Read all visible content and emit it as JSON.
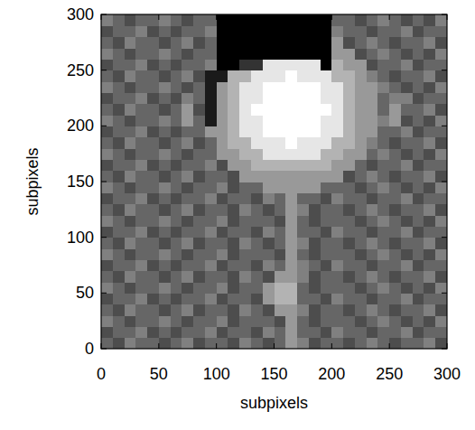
{
  "chart_data": {
    "type": "heatmap",
    "x_label": "subpixels",
    "y_label": "subpixels",
    "xlim": [
      0,
      300
    ],
    "ylim": [
      0,
      300
    ],
    "xticks": [
      0,
      50,
      100,
      150,
      200,
      250,
      300
    ],
    "yticks": [
      0,
      50,
      100,
      150,
      200,
      250,
      300
    ],
    "zlim": [
      0,
      10
    ],
    "cells": [
      [
        4,
        3,
        5,
        4,
        4,
        3,
        4,
        5,
        3,
        4,
        4,
        3,
        5,
        4,
        3,
        4,
        6,
        5,
        3,
        4,
        4,
        3,
        4,
        5,
        4,
        3,
        4,
        4,
        5,
        3
      ],
      [
        3,
        4,
        4,
        5,
        3,
        4,
        3,
        4,
        4,
        5,
        3,
        4,
        4,
        3,
        5,
        4,
        6,
        4,
        4,
        3,
        5,
        4,
        4,
        3,
        4,
        4,
        5,
        3,
        4,
        4
      ],
      [
        5,
        4,
        3,
        4,
        4,
        5,
        4,
        3,
        4,
        4,
        5,
        3,
        4,
        4,
        4,
        3,
        6,
        4,
        3,
        4,
        4,
        4,
        3,
        4,
        5,
        4,
        3,
        4,
        3,
        5
      ],
      [
        4,
        3,
        5,
        4,
        4,
        3,
        4,
        5,
        3,
        4,
        4,
        3,
        5,
        4,
        3,
        6,
        6,
        5,
        3,
        4,
        4,
        3,
        4,
        5,
        4,
        3,
        4,
        4,
        5,
        3
      ],
      [
        3,
        4,
        4,
        5,
        3,
        4,
        3,
        4,
        4,
        5,
        3,
        4,
        4,
        3,
        6,
        7,
        7,
        4,
        4,
        3,
        5,
        4,
        4,
        3,
        4,
        4,
        5,
        3,
        4,
        4
      ],
      [
        5,
        4,
        3,
        4,
        4,
        5,
        4,
        3,
        4,
        4,
        5,
        3,
        4,
        4,
        6,
        7,
        7,
        4,
        3,
        4,
        4,
        4,
        3,
        4,
        5,
        4,
        3,
        4,
        3,
        5
      ],
      [
        4,
        3,
        5,
        4,
        4,
        3,
        4,
        5,
        3,
        4,
        4,
        3,
        5,
        4,
        3,
        6,
        6,
        5,
        3,
        4,
        4,
        3,
        4,
        5,
        4,
        3,
        4,
        4,
        5,
        3
      ],
      [
        3,
        4,
        4,
        5,
        3,
        4,
        3,
        4,
        4,
        5,
        3,
        4,
        4,
        3,
        5,
        4,
        6,
        5,
        4,
        3,
        5,
        4,
        4,
        3,
        4,
        4,
        5,
        3,
        4,
        4
      ],
      [
        5,
        4,
        3,
        4,
        4,
        5,
        4,
        3,
        4,
        4,
        5,
        3,
        4,
        4,
        4,
        3,
        6,
        4,
        3,
        4,
        4,
        4,
        3,
        4,
        5,
        4,
        3,
        4,
        3,
        5
      ],
      [
        4,
        3,
        5,
        4,
        4,
        3,
        4,
        5,
        3,
        4,
        4,
        3,
        5,
        4,
        3,
        4,
        6,
        5,
        3,
        4,
        4,
        3,
        4,
        5,
        4,
        3,
        4,
        4,
        5,
        3
      ],
      [
        3,
        4,
        4,
        5,
        3,
        4,
        3,
        4,
        4,
        5,
        3,
        4,
        4,
        3,
        5,
        4,
        6,
        4,
        4,
        3,
        5,
        4,
        4,
        3,
        4,
        4,
        5,
        3,
        4,
        4
      ],
      [
        5,
        4,
        3,
        4,
        4,
        5,
        4,
        3,
        4,
        4,
        5,
        3,
        4,
        4,
        4,
        3,
        6,
        4,
        3,
        4,
        4,
        4,
        3,
        4,
        5,
        4,
        3,
        4,
        3,
        5
      ],
      [
        4,
        3,
        5,
        4,
        4,
        3,
        4,
        5,
        3,
        4,
        4,
        3,
        5,
        4,
        3,
        4,
        6,
        5,
        3,
        4,
        4,
        3,
        4,
        5,
        4,
        3,
        4,
        4,
        5,
        3
      ],
      [
        3,
        4,
        4,
        5,
        3,
        4,
        3,
        4,
        4,
        5,
        3,
        4,
        4,
        3,
        5,
        4,
        6,
        4,
        4,
        3,
        5,
        4,
        4,
        3,
        4,
        4,
        5,
        3,
        4,
        4
      ],
      [
        5,
        4,
        3,
        4,
        4,
        5,
        4,
        3,
        4,
        4,
        5,
        3,
        4,
        4,
        6,
        6,
        6,
        6,
        6,
        4,
        4,
        4,
        3,
        4,
        5,
        4,
        3,
        4,
        3,
        5
      ],
      [
        4,
        3,
        5,
        4,
        4,
        3,
        4,
        5,
        3,
        4,
        4,
        3,
        6,
        6,
        6,
        6,
        6,
        6,
        6,
        6,
        6,
        3,
        4,
        5,
        4,
        3,
        4,
        4,
        5,
        3
      ],
      [
        3,
        4,
        4,
        5,
        3,
        4,
        3,
        4,
        4,
        5,
        3,
        6,
        6,
        7,
        7,
        7,
        7,
        7,
        7,
        7,
        6,
        6,
        4,
        3,
        4,
        4,
        5,
        3,
        4,
        4
      ],
      [
        5,
        4,
        3,
        4,
        4,
        5,
        4,
        3,
        4,
        4,
        6,
        6,
        7,
        7,
        9,
        9,
        9,
        9,
        9,
        7,
        7,
        6,
        6,
        4,
        5,
        4,
        3,
        4,
        3,
        5
      ],
      [
        4,
        3,
        5,
        4,
        4,
        3,
        4,
        5,
        3,
        4,
        6,
        7,
        7,
        9,
        9,
        9,
        10,
        9,
        9,
        9,
        7,
        7,
        6,
        5,
        4,
        3,
        4,
        4,
        5,
        3
      ],
      [
        3,
        4,
        4,
        5,
        3,
        4,
        3,
        4,
        4,
        6,
        6,
        7,
        9,
        9,
        10,
        10,
        10,
        10,
        10,
        9,
        9,
        7,
        6,
        6,
        4,
        4,
        5,
        3,
        4,
        4
      ],
      [
        5,
        4,
        3,
        4,
        4,
        5,
        4,
        6,
        4,
        1,
        6,
        7,
        9,
        9,
        10,
        10,
        10,
        10,
        10,
        9,
        9,
        7,
        6,
        6,
        5,
        6,
        3,
        4,
        3,
        5
      ],
      [
        4,
        3,
        5,
        4,
        4,
        3,
        4,
        6,
        3,
        1,
        6,
        7,
        9,
        10,
        10,
        10,
        10,
        10,
        10,
        10,
        9,
        7,
        6,
        6,
        4,
        6,
        4,
        4,
        5,
        3
      ],
      [
        3,
        4,
        4,
        5,
        3,
        4,
        3,
        5,
        4,
        1,
        6,
        7,
        9,
        9,
        10,
        10,
        10,
        10,
        10,
        9,
        9,
        7,
        6,
        6,
        4,
        5,
        5,
        3,
        4,
        4
      ],
      [
        5,
        4,
        3,
        4,
        4,
        5,
        4,
        3,
        4,
        1,
        6,
        7,
        9,
        9,
        10,
        10,
        10,
        10,
        10,
        9,
        9,
        7,
        6,
        6,
        5,
        4,
        3,
        4,
        3,
        5
      ],
      [
        4,
        3,
        5,
        4,
        4,
        3,
        4,
        5,
        3,
        1,
        1,
        7,
        7,
        9,
        9,
        9,
        10,
        9,
        9,
        9,
        7,
        7,
        6,
        5,
        4,
        3,
        4,
        4,
        5,
        3
      ],
      [
        3,
        4,
        4,
        5,
        3,
        4,
        3,
        4,
        4,
        5,
        0,
        0,
        2,
        2,
        9,
        9,
        9,
        9,
        9,
        0,
        7,
        6,
        6,
        3,
        4,
        4,
        5,
        3,
        4,
        4
      ],
      [
        5,
        4,
        3,
        4,
        4,
        5,
        4,
        3,
        4,
        4,
        0,
        0,
        0,
        0,
        0,
        0,
        0,
        0,
        0,
        0,
        6,
        6,
        3,
        4,
        5,
        4,
        3,
        4,
        3,
        5
      ],
      [
        4,
        3,
        5,
        4,
        4,
        3,
        4,
        5,
        3,
        4,
        0,
        0,
        0,
        0,
        0,
        0,
        0,
        0,
        0,
        0,
        6,
        3,
        4,
        5,
        4,
        3,
        4,
        4,
        5,
        3
      ],
      [
        3,
        4,
        4,
        5,
        3,
        4,
        3,
        4,
        4,
        5,
        0,
        0,
        0,
        0,
        0,
        0,
        0,
        0,
        0,
        0,
        5,
        4,
        4,
        3,
        4,
        4,
        5,
        3,
        4,
        4
      ],
      [
        5,
        4,
        3,
        4,
        4,
        5,
        4,
        3,
        4,
        4,
        0,
        0,
        0,
        0,
        0,
        0,
        0,
        0,
        0,
        0,
        4,
        4,
        3,
        4,
        5,
        4,
        3,
        4,
        3,
        5
      ]
    ]
  }
}
